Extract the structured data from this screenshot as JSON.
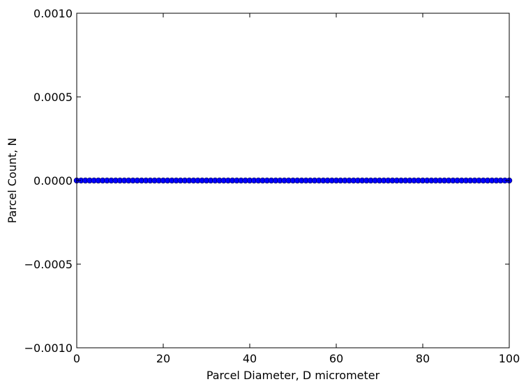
{
  "chart_data": {
    "type": "scatter",
    "title": "",
    "xlabel": "Parcel Diameter, D micrometer",
    "ylabel": "Parcel Count, N",
    "xlim": [
      0,
      100
    ],
    "ylim": [
      -0.001,
      0.001
    ],
    "x_ticks": [
      0,
      20,
      40,
      60,
      80,
      100
    ],
    "y_ticks": [
      -0.001,
      -0.0005,
      0.0,
      0.0005,
      0.001
    ],
    "x_tick_labels": [
      "0",
      "20",
      "40",
      "60",
      "80",
      "100"
    ],
    "y_tick_labels": [
      "−0.0010",
      "−0.0005",
      "0.0000",
      "0.0005",
      "0.0010"
    ],
    "grid": false,
    "legend": "none",
    "marker_color": "#0000ff",
    "series": [
      {
        "x": [
          0,
          1,
          2,
          3,
          4,
          5,
          6,
          7,
          8,
          9,
          10,
          11,
          12,
          13,
          14,
          15,
          16,
          17,
          18,
          19,
          20,
          21,
          22,
          23,
          24,
          25,
          26,
          27,
          28,
          29,
          30,
          31,
          32,
          33,
          34,
          35,
          36,
          37,
          38,
          39,
          40,
          41,
          42,
          43,
          44,
          45,
          46,
          47,
          48,
          49,
          50,
          51,
          52,
          53,
          54,
          55,
          56,
          57,
          58,
          59,
          60,
          61,
          62,
          63,
          64,
          65,
          66,
          67,
          68,
          69,
          70,
          71,
          72,
          73,
          74,
          75,
          76,
          77,
          78,
          79,
          80,
          81,
          82,
          83,
          84,
          85,
          86,
          87,
          88,
          89,
          90,
          91,
          92,
          93,
          94,
          95,
          96,
          97,
          98,
          99,
          100
        ],
        "y": [
          0,
          0,
          0,
          0,
          0,
          0,
          0,
          0,
          0,
          0,
          0,
          0,
          0,
          0,
          0,
          0,
          0,
          0,
          0,
          0,
          0,
          0,
          0,
          0,
          0,
          0,
          0,
          0,
          0,
          0,
          0,
          0,
          0,
          0,
          0,
          0,
          0,
          0,
          0,
          0,
          0,
          0,
          0,
          0,
          0,
          0,
          0,
          0,
          0,
          0,
          0,
          0,
          0,
          0,
          0,
          0,
          0,
          0,
          0,
          0,
          0,
          0,
          0,
          0,
          0,
          0,
          0,
          0,
          0,
          0,
          0,
          0,
          0,
          0,
          0,
          0,
          0,
          0,
          0,
          0,
          0,
          0,
          0,
          0,
          0,
          0,
          0,
          0,
          0,
          0,
          0,
          0,
          0,
          0,
          0,
          0,
          0,
          0,
          0,
          0,
          0
        ]
      }
    ]
  }
}
